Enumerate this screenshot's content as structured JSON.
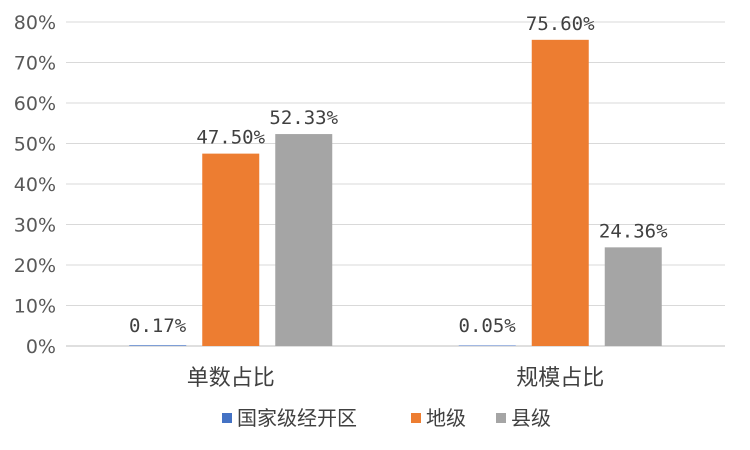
{
  "chart_data": {
    "type": "bar",
    "categories": [
      "单数占比",
      "规模占比"
    ],
    "series": [
      {
        "name": "国家级经开区",
        "color": "#4472C4",
        "values": [
          0.17,
          0.05
        ],
        "labels": [
          "0.17%",
          "0.05%"
        ]
      },
      {
        "name": "地级",
        "color": "#ED7D31",
        "values": [
          47.5,
          75.6
        ],
        "labels": [
          "47.50%",
          "75.60%"
        ]
      },
      {
        "name": "县级",
        "color": "#A5A5A5",
        "values": [
          52.33,
          24.36
        ],
        "labels": [
          "52.33%",
          "24.36%"
        ]
      }
    ],
    "ylim": [
      0,
      80
    ],
    "yticks": [
      0,
      10,
      20,
      30,
      40,
      50,
      60,
      70,
      80
    ],
    "ytick_labels": [
      "0%",
      "10%",
      "20%",
      "30%",
      "40%",
      "50%",
      "60%",
      "70%",
      "80%"
    ],
    "grid": true,
    "legend_position": "bottom"
  }
}
